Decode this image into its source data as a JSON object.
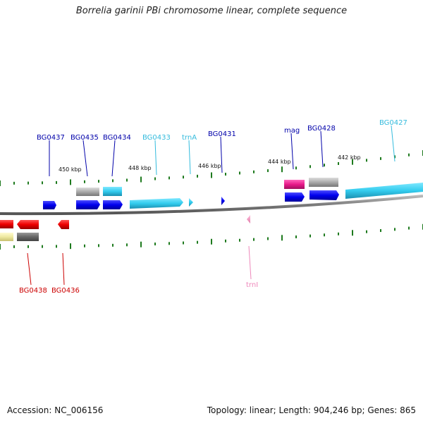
{
  "title": "Borrelia garinii PBi chromosome linear, complete sequence",
  "footer": {
    "accession": "Accession: NC_006156",
    "stats": "Topology: linear; Length: 904,246 bp; Genes: 865"
  },
  "colors": {
    "backbone": "#8a8a8a",
    "tick": "#1e7a1e",
    "cds_forward": "#0000ee",
    "cds_reverse": "#ee0000",
    "rna": "#33ccee",
    "gray_feature": "#aaaaaa",
    "magenta_feature": "#e81a8a",
    "yellow_feature": "#eee8a0"
  },
  "scale_labels": [
    {
      "text": "450 kbp"
    },
    {
      "text": "448 kbp"
    },
    {
      "text": "446 kbp"
    },
    {
      "text": "444 kbp"
    },
    {
      "text": "442 kbp"
    }
  ],
  "gene_labels": [
    {
      "text": "BG0437",
      "color": "#0000aa"
    },
    {
      "text": "BG0435",
      "color": "#0000aa"
    },
    {
      "text": "BG0434",
      "color": "#0000aa"
    },
    {
      "text": "BG0433",
      "color": "#33bbdd"
    },
    {
      "text": "trnA",
      "color": "#33bbdd"
    },
    {
      "text": "BG0431",
      "color": "#0000aa"
    },
    {
      "text": "mag",
      "color": "#0000aa"
    },
    {
      "text": "BG0428",
      "color": "#0000aa"
    },
    {
      "text": "BG0427",
      "color": "#33bbdd"
    },
    {
      "text": "BG0438",
      "color": "#cc0000"
    },
    {
      "text": "BG0436",
      "color": "#cc0000"
    },
    {
      "text": "trnI",
      "color": "#ee88bb"
    }
  ]
}
